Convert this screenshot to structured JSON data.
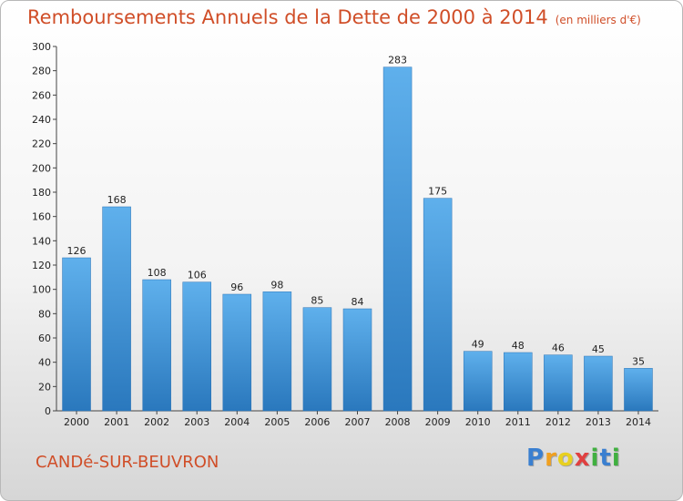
{
  "chart_data": {
    "type": "bar",
    "title": "Remboursements Annuels de la Dette de 2000 à 2014",
    "subtitle": "(en milliers d'€)",
    "categories": [
      "2000",
      "2001",
      "2002",
      "2003",
      "2004",
      "2005",
      "2006",
      "2007",
      "2008",
      "2009",
      "2010",
      "2011",
      "2012",
      "2013",
      "2014"
    ],
    "values": [
      126,
      168,
      108,
      106,
      96,
      98,
      85,
      84,
      283,
      175,
      49,
      48,
      46,
      45,
      35
    ],
    "ylim": [
      0,
      300
    ],
    "yticks": [
      0,
      20,
      40,
      60,
      80,
      100,
      120,
      140,
      160,
      180,
      200,
      220,
      240,
      260,
      280,
      300
    ],
    "grid": false,
    "bar_color": "#3d8fd6"
  },
  "footer": {
    "commune": "CANDé-SUR-BEUVRON"
  },
  "logo": {
    "letters": [
      {
        "char": "P",
        "color": "#3a7fd0"
      },
      {
        "char": "r",
        "color": "#f0a020"
      },
      {
        "char": "o",
        "color": "#e8d020"
      },
      {
        "char": "x",
        "color": "#e04040"
      },
      {
        "char": "i",
        "color": "#40b040"
      },
      {
        "char": "t",
        "color": "#3a7fd0"
      },
      {
        "char": "i",
        "color": "#40b040"
      }
    ]
  }
}
